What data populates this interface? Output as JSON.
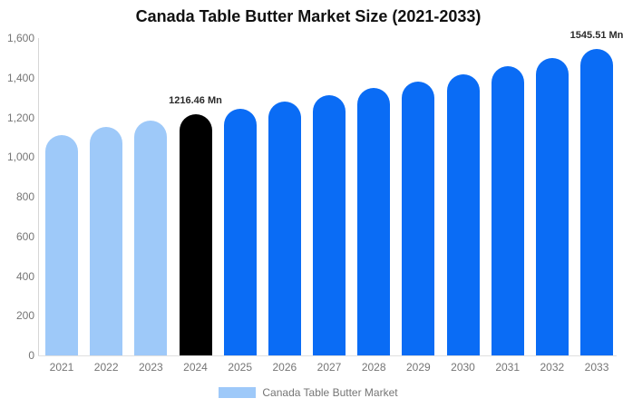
{
  "title": "Canada Table Butter Market Size (2021-2033)",
  "legend": {
    "label": "Canada Table Butter Market",
    "swatch_color": "#9ec9f9"
  },
  "colors": {
    "historical": "#9ec9f9",
    "highlight": "#000000",
    "forecast": "#0a6cf5",
    "axis_line": "#d6d6d6",
    "tick_text": "#757575",
    "value_label_text": "#2a2a2a"
  },
  "chart_data": {
    "type": "bar",
    "title": "Canada Table Butter Market Size (2021-2033)",
    "categories": [
      "2021",
      "2022",
      "2023",
      "2024",
      "2025",
      "2026",
      "2027",
      "2028",
      "2029",
      "2030",
      "2031",
      "2032",
      "2033"
    ],
    "values": [
      1110,
      1150,
      1184,
      1216.46,
      1245,
      1280,
      1313,
      1349,
      1382,
      1416,
      1457,
      1498,
      1545.51
    ],
    "bar_segments": [
      "historical",
      "historical",
      "historical",
      "highlight",
      "forecast",
      "forecast",
      "forecast",
      "forecast",
      "forecast",
      "forecast",
      "forecast",
      "forecast",
      "forecast"
    ],
    "value_labels": [
      "",
      "",
      "",
      "1216.46 Mn",
      "",
      "",
      "",
      "",
      "",
      "",
      "",
      "",
      "1545.51 Mn"
    ],
    "xlabel": "",
    "ylabel": "",
    "ylim": [
      0,
      1600
    ],
    "ytick_values": [
      0,
      200,
      400,
      600,
      800,
      1000,
      1200,
      1400,
      1600
    ],
    "ytick_labels": [
      "0",
      "200",
      "400",
      "600",
      "800",
      "1,000",
      "1,200",
      "1,400",
      "1,600"
    ],
    "grid": false,
    "legend_position": "bottom",
    "legend_entries": [
      "Canada Table Butter Market"
    ]
  }
}
